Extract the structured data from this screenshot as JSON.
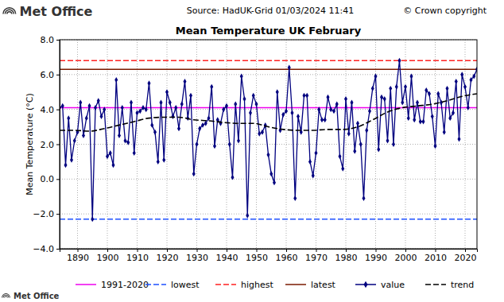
{
  "chart_data": {
    "type": "line",
    "title": "Mean Temperature UK February",
    "annotations": [
      "Met Office",
      "Source: HadUK-Grid 01/03/2024 11:41",
      "© Crown copyright",
      "Met Office"
    ],
    "y_label": "Mean Temperature (°C)",
    "xlim": [
      1884,
      2024
    ],
    "xticks": [
      1890,
      1900,
      1910,
      1920,
      1930,
      1940,
      1950,
      1960,
      1970,
      1980,
      1990,
      2000,
      2010,
      2020
    ],
    "ylim": [
      -4.0,
      8.0
    ],
    "yticks": [
      {
        "value": -4.0,
        "label": "−4.0"
      },
      {
        "value": -2.0,
        "label": "−2.0"
      },
      {
        "value": 0.0,
        "label": "0.0"
      },
      {
        "value": 2.0,
        "label": "2.0"
      },
      {
        "value": 4.0,
        "label": "4.0"
      },
      {
        "value": 6.0,
        "label": "6.0"
      },
      {
        "value": 8.0,
        "label": "8.0"
      }
    ],
    "grid": true,
    "legend": "bottom",
    "reference_lines": [
      {
        "name": "1991-2020",
        "value": 4.1,
        "color": "#ee00ee",
        "line_style": "solid"
      },
      {
        "name": "lowest",
        "value": -2.3,
        "color": "#1e50ff",
        "line_style": "dashed"
      },
      {
        "name": "highest",
        "value": 6.8,
        "color": "#ff2020",
        "line_style": "dashed"
      },
      {
        "name": "latest",
        "value": 6.3,
        "color": "#7a1a00",
        "line_style": "solid"
      }
    ],
    "x": [
      1884,
      1885,
      1886,
      1887,
      1888,
      1889,
      1890,
      1891,
      1892,
      1893,
      1894,
      1895,
      1896,
      1897,
      1898,
      1899,
      1900,
      1901,
      1902,
      1903,
      1904,
      1905,
      1906,
      1907,
      1908,
      1909,
      1910,
      1911,
      1912,
      1913,
      1914,
      1915,
      1916,
      1917,
      1918,
      1919,
      1920,
      1921,
      1922,
      1923,
      1924,
      1925,
      1926,
      1927,
      1928,
      1929,
      1930,
      1931,
      1932,
      1933,
      1934,
      1935,
      1936,
      1937,
      1938,
      1939,
      1940,
      1941,
      1942,
      1943,
      1944,
      1945,
      1946,
      1947,
      1948,
      1949,
      1950,
      1951,
      1952,
      1953,
      1954,
      1955,
      1956,
      1957,
      1958,
      1959,
      1960,
      1961,
      1962,
      1963,
      1964,
      1965,
      1966,
      1967,
      1968,
      1969,
      1970,
      1971,
      1972,
      1973,
      1974,
      1975,
      1976,
      1977,
      1978,
      1979,
      1980,
      1981,
      1982,
      1983,
      1984,
      1985,
      1986,
      1987,
      1988,
      1989,
      1990,
      1991,
      1992,
      1993,
      1994,
      1995,
      1996,
      1997,
      1998,
      1999,
      2000,
      2001,
      2002,
      2003,
      2004,
      2005,
      2006,
      2007,
      2008,
      2009,
      2010,
      2011,
      2012,
      2013,
      2014,
      2015,
      2016,
      2017,
      2018,
      2019,
      2020,
      2021,
      2022,
      2023,
      2024
    ],
    "series": [
      {
        "name": "value",
        "color": "#00007f",
        "marker": "diamond",
        "line_style": "solid",
        "values": [
          4.1,
          4.2,
          0.8,
          3.5,
          1.1,
          2.2,
          2.7,
          4.4,
          2.5,
          3.5,
          4.2,
          -2.3,
          4.1,
          4.5,
          3.6,
          4.0,
          1.3,
          1.5,
          0.8,
          5.7,
          2.5,
          4.1,
          2.2,
          2.1,
          4.4,
          1.5,
          3.8,
          3.9,
          4.1,
          4.0,
          5.5,
          3.1,
          2.7,
          1.0,
          4.4,
          1.1,
          5.0,
          4.4,
          3.6,
          4.1,
          2.9,
          4.3,
          5.6,
          3.5,
          4.8,
          0.3,
          2.0,
          2.9,
          3.1,
          3.2,
          3.5,
          5.3,
          1.9,
          3.4,
          3.2,
          4.0,
          4.2,
          2.0,
          0.1,
          4.3,
          2.2,
          5.9,
          4.6,
          -2.1,
          3.8,
          4.8,
          4.3,
          2.6,
          2.7,
          3.1,
          1.4,
          0.3,
          -0.2,
          5.0,
          2.8,
          3.7,
          3.9,
          6.4,
          3.8,
          -1.1,
          3.6,
          2.7,
          4.8,
          4.8,
          1.0,
          0.2,
          1.5,
          4.0,
          3.4,
          3.4,
          4.7,
          4.0,
          3.9,
          4.3,
          1.3,
          0.6,
          4.6,
          2.6,
          4.4,
          1.6,
          3.2,
          2.0,
          -1.1,
          2.8,
          3.9,
          5.2,
          5.9,
          1.7,
          4.7,
          4.6,
          2.2,
          5.2,
          2.0,
          5.3,
          6.8,
          4.4,
          5.3,
          3.5,
          5.9,
          3.4,
          4.4,
          3.3,
          3.3,
          5.1,
          4.9,
          3.6,
          1.9,
          4.9,
          4.4,
          2.7,
          5.2,
          3.5,
          3.8,
          5.6,
          2.3,
          6.0,
          5.3,
          4.1,
          5.7,
          5.9,
          6.3
        ]
      },
      {
        "name": "trend",
        "color": "#000000",
        "line_style": "dashed",
        "x": [
          1884,
          1889,
          1894,
          1899,
          1904,
          1909,
          1914,
          1919,
          1924,
          1929,
          1934,
          1939,
          1944,
          1949,
          1954,
          1959,
          1964,
          1969,
          1974,
          1979,
          1984,
          1989,
          1994,
          1999,
          2004,
          2009,
          2014,
          2019,
          2024
        ],
        "values": [
          2.8,
          2.8,
          2.75,
          2.9,
          3.1,
          3.3,
          3.5,
          3.55,
          3.55,
          3.4,
          3.35,
          3.25,
          3.2,
          3.2,
          3.0,
          2.85,
          2.8,
          2.8,
          2.85,
          2.85,
          3.0,
          3.4,
          3.85,
          4.1,
          4.2,
          4.3,
          4.5,
          4.75,
          4.9
        ]
      }
    ]
  }
}
